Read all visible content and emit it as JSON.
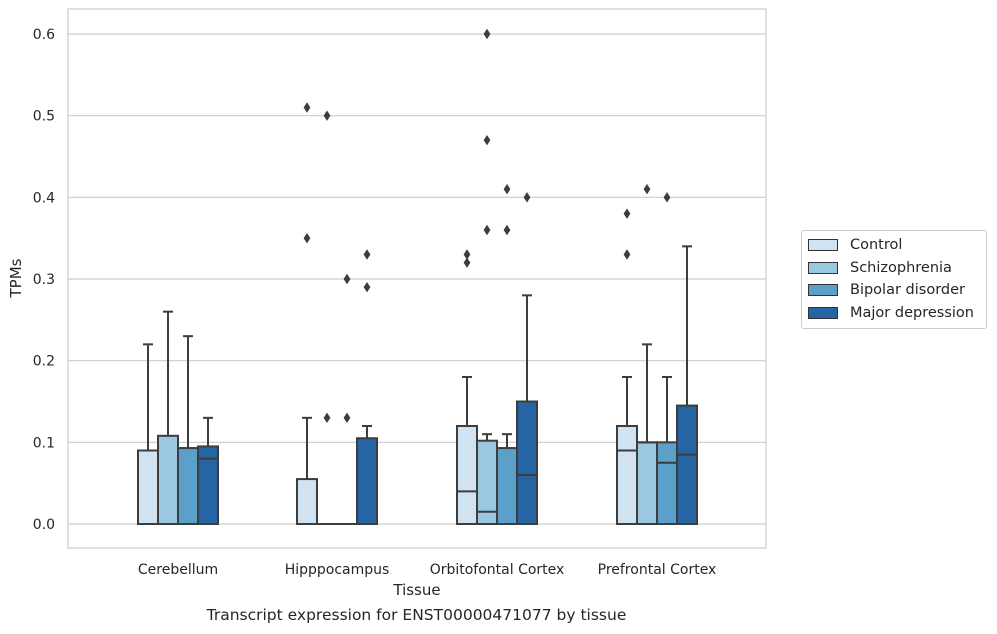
{
  "chart_data": {
    "type": "box",
    "xlabel": "Tissue",
    "ylabel": "TPMs",
    "caption": "Transcript expression for ENST00000471077 by tissue",
    "ylim": [
      -0.03,
      0.63
    ],
    "yticks": [
      0.0,
      0.1,
      0.2,
      0.3,
      0.4,
      0.5,
      0.6
    ],
    "ytick_labels": [
      "0.0",
      "0.1",
      "0.2",
      "0.3",
      "0.4",
      "0.5",
      "0.6"
    ],
    "grid": true,
    "legend_position": "center-right",
    "categories": [
      "Cerebellum",
      "Hipppocampus",
      "Orbitofontal Cortex",
      "Prefrontal Cortex"
    ],
    "series": [
      {
        "name": "Control",
        "color": "#d1e2f1",
        "boxes": [
          {
            "q1": 0.0,
            "median": 0.0,
            "q3": 0.09,
            "whisker_low": 0.0,
            "whisker_high": 0.22,
            "outliers": []
          },
          {
            "q1": 0.0,
            "median": 0.0,
            "q3": 0.055,
            "whisker_low": 0.0,
            "whisker_high": 0.13,
            "outliers": [
              0.35,
              0.51
            ]
          },
          {
            "q1": 0.0,
            "median": 0.04,
            "q3": 0.12,
            "whisker_low": 0.0,
            "whisker_high": 0.18,
            "outliers": [
              0.32,
              0.33
            ]
          },
          {
            "q1": 0.0,
            "median": 0.09,
            "q3": 0.12,
            "whisker_low": 0.0,
            "whisker_high": 0.18,
            "outliers": [
              0.33,
              0.38
            ]
          }
        ]
      },
      {
        "name": "Schizophrenia",
        "color": "#9ac8e0",
        "boxes": [
          {
            "q1": 0.0,
            "median": 0.0,
            "q3": 0.108,
            "whisker_low": 0.0,
            "whisker_high": 0.26,
            "outliers": []
          },
          {
            "q1": 0.0,
            "median": 0.0,
            "q3": 0.0,
            "whisker_low": 0.0,
            "whisker_high": 0.0,
            "outliers": [
              0.13,
              0.5
            ]
          },
          {
            "q1": 0.0,
            "median": 0.015,
            "q3": 0.102,
            "whisker_low": 0.0,
            "whisker_high": 0.11,
            "outliers": [
              0.36,
              0.47,
              0.6
            ]
          },
          {
            "q1": 0.0,
            "median": 0.1,
            "q3": 0.1,
            "whisker_low": 0.0,
            "whisker_high": 0.22,
            "outliers": [
              0.41
            ]
          }
        ]
      },
      {
        "name": "Bipolar disorder",
        "color": "#5b9fcb",
        "boxes": [
          {
            "q1": 0.0,
            "median": 0.0,
            "q3": 0.093,
            "whisker_low": 0.0,
            "whisker_high": 0.23,
            "outliers": []
          },
          {
            "q1": 0.0,
            "median": 0.0,
            "q3": 0.0,
            "whisker_low": 0.0,
            "whisker_high": 0.0,
            "outliers": [
              0.13,
              0.3
            ]
          },
          {
            "q1": 0.0,
            "median": 0.0,
            "q3": 0.093,
            "whisker_low": 0.0,
            "whisker_high": 0.11,
            "outliers": [
              0.36,
              0.41
            ]
          },
          {
            "q1": 0.0,
            "median": 0.075,
            "q3": 0.1,
            "whisker_low": 0.0,
            "whisker_high": 0.18,
            "outliers": [
              0.4
            ]
          }
        ]
      },
      {
        "name": "Major depression",
        "color": "#2565a3",
        "boxes": [
          {
            "q1": 0.0,
            "median": 0.08,
            "q3": 0.095,
            "whisker_low": 0.0,
            "whisker_high": 0.13,
            "outliers": []
          },
          {
            "q1": 0.0,
            "median": 0.0,
            "q3": 0.105,
            "whisker_low": 0.0,
            "whisker_high": 0.12,
            "outliers": [
              0.29,
              0.33
            ]
          },
          {
            "q1": 0.0,
            "median": 0.06,
            "q3": 0.15,
            "whisker_low": 0.0,
            "whisker_high": 0.28,
            "outliers": [
              0.4
            ]
          },
          {
            "q1": 0.0,
            "median": 0.085,
            "q3": 0.145,
            "whisker_low": 0.0,
            "whisker_high": 0.34,
            "outliers": []
          }
        ]
      }
    ]
  }
}
